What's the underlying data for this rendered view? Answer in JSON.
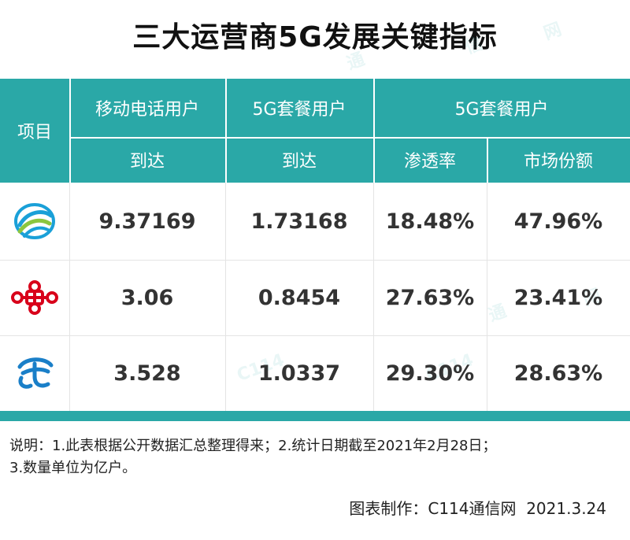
{
  "title": "三大运营商5G发展关键指标",
  "table": {
    "header_item": "项目",
    "col_groups": [
      "移动电话用户",
      "5G套餐用户",
      "5G套餐用户"
    ],
    "sub_headers": [
      "到达",
      "到达",
      "渗透率",
      "市场份额"
    ],
    "rows": [
      {
        "logo": "china-mobile-logo",
        "values": [
          "9.37169",
          "1.73168",
          "18.48%",
          "47.96%"
        ]
      },
      {
        "logo": "china-unicom-logo",
        "values": [
          "3.06",
          "0.8454",
          "27.63%",
          "23.41%"
        ]
      },
      {
        "logo": "china-telecom-logo",
        "values": [
          "3.528",
          "1.0337",
          "29.30%",
          "28.63%"
        ]
      }
    ]
  },
  "note": {
    "line1": "说明：1.此表根据公开数据汇总整理得来；2.统计日期截至2021年2月28日；",
    "line2": "3.数量单位为亿户。"
  },
  "footer": "图表制作：C114通信网  2021.3.24",
  "colors": {
    "accent": "#2aa8a7",
    "mobile": "#1aa0d8",
    "unicom": "#d8001a",
    "telecom": "#1a7fc8"
  }
}
